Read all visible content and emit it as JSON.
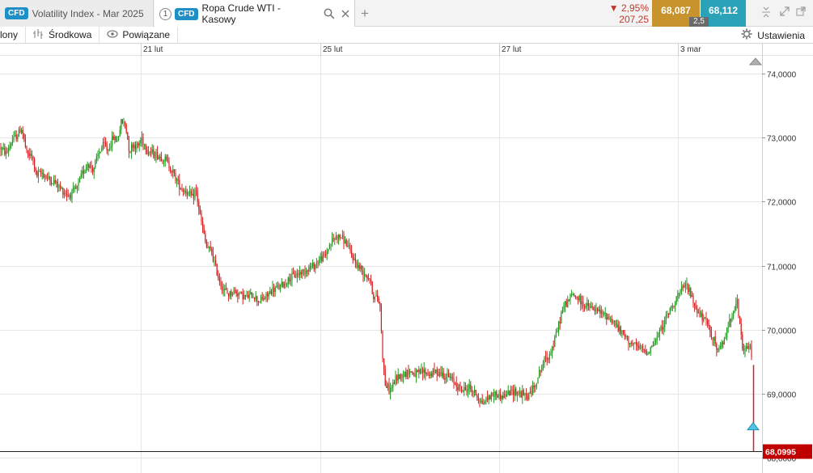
{
  "tabs": [
    {
      "badge": "CFD",
      "label": "Volatility Index - Mar 2025"
    },
    {
      "number": "1",
      "badge": "CFD",
      "label": "Ropa Crude WTI - Kasowy"
    }
  ],
  "quote": {
    "change_pct": "▼ 2,95%",
    "change_abs": "207,25",
    "sell": "68,087",
    "buy": "68,112",
    "spread": "2,5"
  },
  "toolbar": {
    "item1": "lony",
    "item2": "Środkowa",
    "item3": "Powiązane",
    "settings": "Ustawienia"
  },
  "icons": {
    "search": "search-icon",
    "close": "close-icon",
    "add": "plus-icon",
    "bars": "bars-icon",
    "eye": "eye-icon",
    "gear": "gear-icon"
  },
  "colors": {
    "up": "#1f9a1f",
    "down": "#d42020",
    "price_tag": "#c00000",
    "marker": "#4fc3e8"
  },
  "chart_data": {
    "type": "candlestick",
    "x_labels": [
      "21 lut",
      "25 lut",
      "27 lut",
      "3 mar"
    ],
    "y_ticks": [
      "74,0000",
      "73,0000",
      "72,0000",
      "71,0000",
      "70,0000",
      "69,0000",
      "68,0000"
    ],
    "ylim": [
      67.9,
      74.3
    ],
    "last_price": "68,0995",
    "series": [
      [
        0,
        72.85
      ],
      [
        8,
        72.75
      ],
      [
        15,
        72.95
      ],
      [
        22,
        73.05
      ],
      [
        27,
        73.15
      ],
      [
        33,
        72.75
      ],
      [
        40,
        72.7
      ],
      [
        45,
        72.4
      ],
      [
        52,
        72.45
      ],
      [
        60,
        72.35
      ],
      [
        68,
        72.3
      ],
      [
        75,
        72.2
      ],
      [
        85,
        72.1
      ],
      [
        95,
        72.2
      ],
      [
        102,
        72.45
      ],
      [
        108,
        72.6
      ],
      [
        115,
        72.5
      ],
      [
        122,
        72.75
      ],
      [
        128,
        72.9
      ],
      [
        133,
        72.8
      ],
      [
        140,
        73.0
      ],
      [
        145,
        72.95
      ],
      [
        150,
        73.25
      ],
      [
        155,
        73.2
      ],
      [
        160,
        72.8
      ],
      [
        165,
        72.9
      ],
      [
        170,
        72.85
      ],
      [
        175,
        73.0
      ],
      [
        182,
        72.8
      ],
      [
        190,
        72.75
      ],
      [
        198,
        72.7
      ],
      [
        205,
        72.65
      ],
      [
        212,
        72.5
      ],
      [
        220,
        72.3
      ],
      [
        225,
        72.2
      ],
      [
        232,
        72.15
      ],
      [
        238,
        72.05
      ],
      [
        242,
        72.2
      ],
      [
        245,
        71.95
      ],
      [
        250,
        71.6
      ],
      [
        255,
        71.3
      ],
      [
        262,
        71.2
      ],
      [
        268,
        70.9
      ],
      [
        275,
        70.65
      ],
      [
        282,
        70.55
      ],
      [
        290,
        70.6
      ],
      [
        298,
        70.55
      ],
      [
        305,
        70.5
      ],
      [
        312,
        70.55
      ],
      [
        320,
        70.45
      ],
      [
        328,
        70.5
      ],
      [
        335,
        70.6
      ],
      [
        342,
        70.65
      ],
      [
        350,
        70.7
      ],
      [
        358,
        70.8
      ],
      [
        365,
        70.85
      ],
      [
        372,
        70.9
      ],
      [
        380,
        70.95
      ],
      [
        388,
        71.0
      ],
      [
        395,
        71.1
      ],
      [
        402,
        71.15
      ],
      [
        408,
        71.35
      ],
      [
        415,
        71.45
      ],
      [
        422,
        71.45
      ],
      [
        428,
        71.35
      ],
      [
        435,
        71.15
      ],
      [
        442,
        71.0
      ],
      [
        450,
        70.9
      ],
      [
        457,
        70.8
      ],
      [
        462,
        70.5
      ],
      [
        467,
        70.5
      ],
      [
        470,
        70.35
      ],
      [
        473,
        69.6
      ],
      [
        476,
        69.15
      ],
      [
        482,
        69.05
      ],
      [
        490,
        69.25
      ],
      [
        498,
        69.3
      ],
      [
        506,
        69.35
      ],
      [
        515,
        69.3
      ],
      [
        523,
        69.35
      ],
      [
        531,
        69.3
      ],
      [
        540,
        69.35
      ],
      [
        548,
        69.3
      ],
      [
        556,
        69.25
      ],
      [
        564,
        69.15
      ],
      [
        572,
        69.05
      ],
      [
        580,
        69.1
      ],
      [
        588,
        69.0
      ],
      [
        596,
        68.85
      ],
      [
        604,
        68.95
      ],
      [
        612,
        69.0
      ],
      [
        620,
        68.95
      ],
      [
        628,
        69.0
      ],
      [
        636,
        69.05
      ],
      [
        644,
        69.0
      ],
      [
        652,
        68.95
      ],
      [
        660,
        69.1
      ],
      [
        666,
        69.3
      ],
      [
        672,
        69.5
      ],
      [
        678,
        69.6
      ],
      [
        684,
        69.75
      ],
      [
        690,
        70.05
      ],
      [
        696,
        70.35
      ],
      [
        702,
        70.45
      ],
      [
        708,
        70.55
      ],
      [
        714,
        70.5
      ],
      [
        720,
        70.4
      ],
      [
        728,
        70.35
      ],
      [
        736,
        70.3
      ],
      [
        744,
        70.25
      ],
      [
        752,
        70.2
      ],
      [
        760,
        70.1
      ],
      [
        768,
        69.95
      ],
      [
        776,
        69.85
      ],
      [
        784,
        69.75
      ],
      [
        792,
        69.7
      ],
      [
        800,
        69.65
      ],
      [
        806,
        69.75
      ],
      [
        812,
        69.85
      ],
      [
        818,
        70.05
      ],
      [
        824,
        70.2
      ],
      [
        830,
        70.35
      ],
      [
        836,
        70.5
      ],
      [
        842,
        70.6
      ],
      [
        848,
        70.7
      ],
      [
        852,
        70.6
      ],
      [
        858,
        70.4
      ],
      [
        864,
        70.25
      ],
      [
        870,
        70.15
      ],
      [
        876,
        70.05
      ],
      [
        882,
        69.85
      ],
      [
        888,
        69.65
      ],
      [
        894,
        69.8
      ],
      [
        900,
        70.05
      ],
      [
        906,
        70.3
      ],
      [
        911,
        70.45
      ],
      [
        915,
        70.0
      ],
      [
        919,
        69.65
      ],
      [
        923,
        69.7
      ],
      [
        927,
        69.75
      ],
      [
        930,
        69.55
      ],
      [
        932,
        68.8
      ],
      [
        934,
        68.15
      ]
    ],
    "markers": {
      "up_arrow_at_top": true,
      "cyan_triangle_price": 68.5
    }
  }
}
